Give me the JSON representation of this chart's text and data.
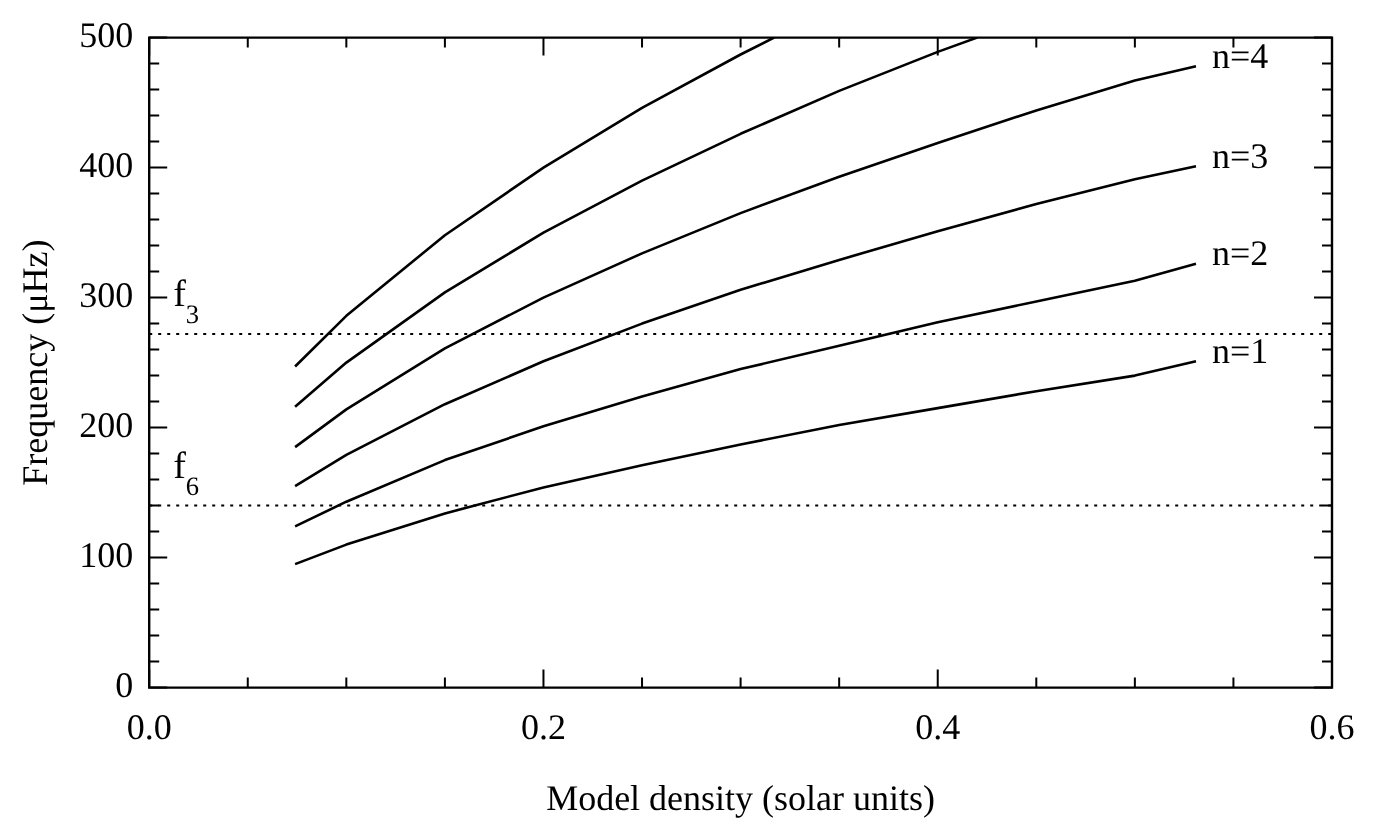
{
  "chart_data": {
    "type": "line",
    "xlabel": "Model density (solar units)",
    "ylabel": "Frequency (μHz)",
    "xlim": [
      0,
      0.6
    ],
    "ylim": [
      0,
      500
    ],
    "xticks": [
      {
        "value": 0,
        "label": "0.0"
      },
      {
        "value": 0.05,
        "label": null
      },
      {
        "value": 0.1,
        "label": null
      },
      {
        "value": 0.15,
        "label": null
      },
      {
        "value": 0.2,
        "label": "0.2"
      },
      {
        "value": 0.25,
        "label": null
      },
      {
        "value": 0.3,
        "label": null
      },
      {
        "value": 0.35,
        "label": null
      },
      {
        "value": 0.4,
        "label": "0.4"
      },
      {
        "value": 0.45,
        "label": null
      },
      {
        "value": 0.5,
        "label": null
      },
      {
        "value": 0.55,
        "label": null
      },
      {
        "value": 0.6,
        "label": "0.6"
      }
    ],
    "yticks": [
      0,
      {
        "value": 20,
        "label": null
      },
      {
        "value": 40,
        "label": null
      },
      {
        "value": 60,
        "label": null
      },
      {
        "value": 80,
        "label": null
      },
      100,
      {
        "value": 120,
        "label": null
      },
      {
        "value": 140,
        "label": null
      },
      {
        "value": 160,
        "label": null
      },
      {
        "value": 180,
        "label": null
      },
      200,
      {
        "value": 220,
        "label": null
      },
      {
        "value": 240,
        "label": null
      },
      {
        "value": 260,
        "label": null
      },
      {
        "value": 280,
        "label": null
      },
      300,
      {
        "value": 320,
        "label": null
      },
      {
        "value": 340,
        "label": null
      },
      {
        "value": 360,
        "label": null
      },
      {
        "value": 380,
        "label": null
      },
      400,
      {
        "value": 420,
        "label": null
      },
      {
        "value": 440,
        "label": null
      },
      {
        "value": 460,
        "label": null
      },
      {
        "value": 480,
        "label": null
      },
      500
    ],
    "grid": false,
    "legend": "right",
    "marker": "none",
    "line_style": "solid",
    "x": [
      0.074,
      0.1,
      0.15,
      0.2,
      0.25,
      0.3,
      0.35,
      0.4,
      0.45,
      0.5,
      0.531
    ],
    "series": [
      {
        "name": "n=1",
        "color": "#000000",
        "values": [
          95,
          110,
          134,
          154,
          171,
          187,
          202,
          215,
          228,
          240,
          251
        ]
      },
      {
        "name": "n=2",
        "color": "#000000",
        "values": [
          124,
          143,
          175,
          201,
          224,
          245,
          263,
          281,
          297,
          313,
          326
        ]
      },
      {
        "name": "n=3",
        "color": "#000000",
        "values": [
          155,
          179,
          218,
          251,
          280,
          306,
          329,
          351,
          372,
          391,
          401
        ]
      },
      {
        "name": "n=4",
        "color": "#000000",
        "values": [
          185,
          214,
          261,
          300,
          334,
          365,
          393,
          419,
          444,
          467,
          478
        ]
      },
      {
        "color": "#000000",
        "x": [
          0.074,
          0.1,
          0.15,
          0.2,
          0.25,
          0.3,
          0.35,
          0.4,
          0.42
        ],
        "values": [
          216,
          250,
          304,
          350,
          390,
          426,
          459,
          489,
          500
        ]
      },
      {
        "color": "#000000",
        "x": [
          0.074,
          0.1,
          0.15,
          0.2,
          0.25,
          0.3,
          0.317
        ],
        "values": [
          247,
          286,
          348,
          400,
          446,
          487,
          500
        ]
      }
    ],
    "ref_lines": [
      {
        "axis": "y",
        "value": 272,
        "label": "f$_{3}$",
        "color": "#000000",
        "line_style": "dotted"
      },
      {
        "axis": "y",
        "value": 140,
        "label": "f$_{6}$",
        "color": "#000000",
        "line_style": "dotted"
      }
    ]
  }
}
